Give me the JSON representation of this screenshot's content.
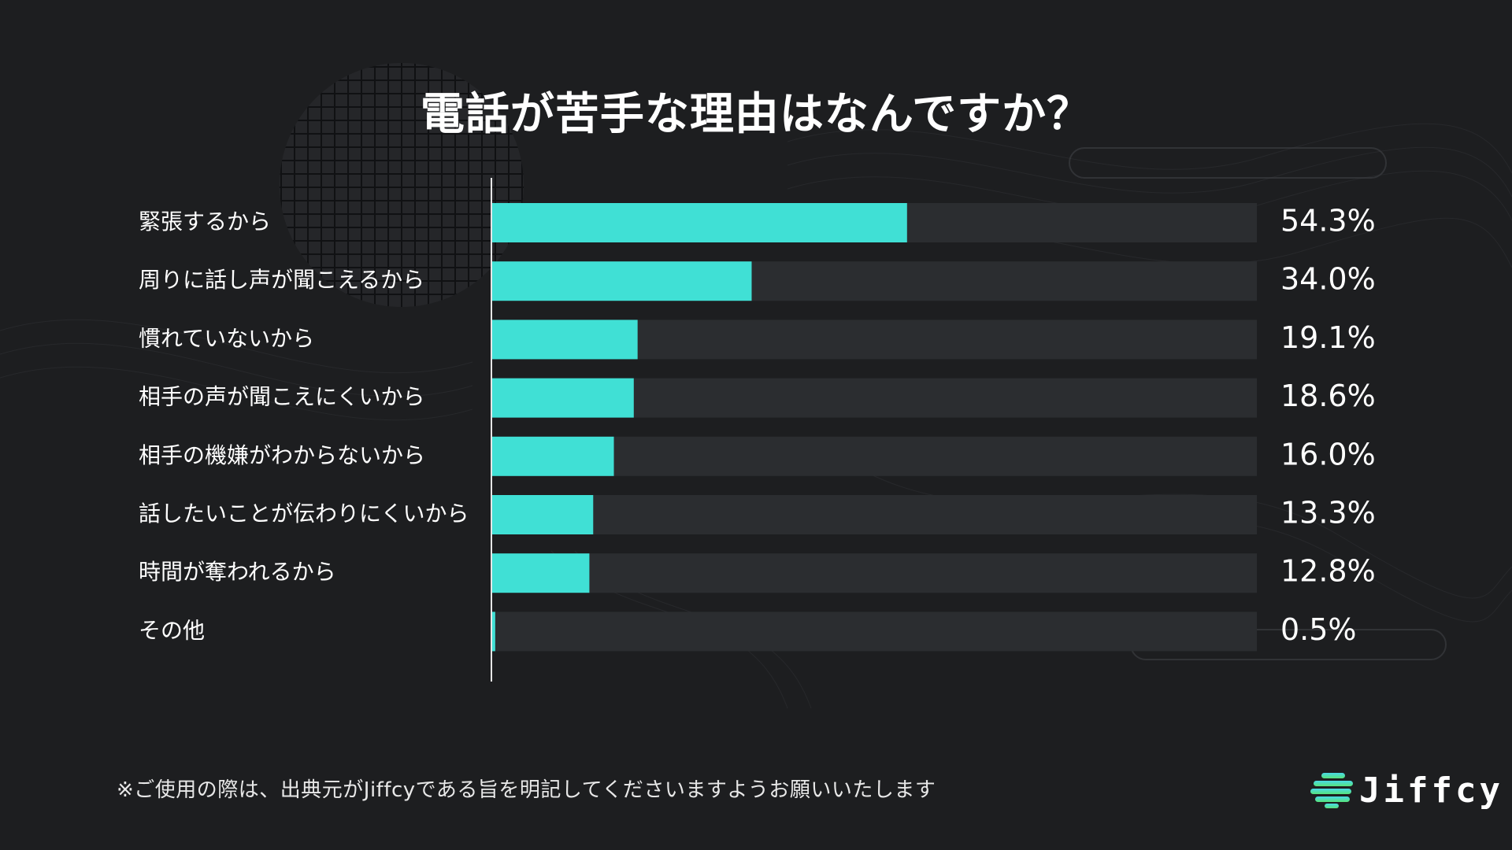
{
  "chart_data": {
    "type": "bar",
    "orientation": "horizontal",
    "title": "電話が苦手な理由はなんですか？",
    "categories": [
      "緊張するから",
      "周りに話し声が聞こえるから",
      "慣れていないから",
      "相手の声が聞こえにくいから",
      "相手の機嫌がわからないから",
      "話したいことが伝わりにくいから",
      "時間が奪われるから",
      "その他"
    ],
    "values": [
      54.3,
      34.0,
      19.1,
      18.6,
      16.0,
      13.3,
      12.8,
      0.5
    ],
    "value_labels": [
      "54.3%",
      "34.0%",
      "19.1%",
      "18.6%",
      "16.0%",
      "13.3%",
      "12.8%",
      "0.5%"
    ],
    "unit": "%",
    "xlim": [
      0,
      100
    ],
    "grid": false,
    "legend": "none",
    "colors": {
      "bar": "#40e0d5",
      "track": "#2b2d30",
      "text": "#ffffff",
      "background": "#1d1e20"
    }
  },
  "footnote": "※ご使用の際は、出典元がJiffcyである旨を明記してくださいますようお願いいたします",
  "brand": {
    "name": "Jiffcy",
    "icon": "jiffcy-logo-icon"
  }
}
